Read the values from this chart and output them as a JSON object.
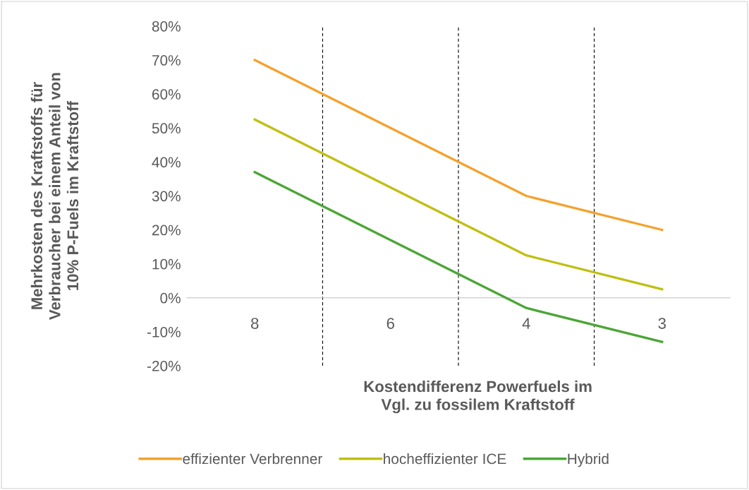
{
  "chart_data": {
    "type": "line",
    "xlabel": "Kostendifferenz Powerfuels im\nVgl. zu fossilem Kraftstoff",
    "ylabel": "Mehrkosten des Kraftstoffs für\nVerbraucher bei einem Anteil von\n10% P-Fuels im Kraftstoff",
    "categories": [
      "8",
      "6",
      "4",
      "3"
    ],
    "series": [
      {
        "name": "effizienter Verbrenner",
        "color": "#f4a22d",
        "values": [
          70,
          50,
          30,
          20
        ]
      },
      {
        "name": "hocheffizienter ICE",
        "color": "#bfbf12",
        "values": [
          52.5,
          32.5,
          12.5,
          2.5
        ]
      },
      {
        "name": "Hybrid",
        "color": "#4aa635",
        "values": [
          37,
          17,
          -3,
          -13
        ]
      }
    ],
    "ylim": [
      -20,
      80
    ],
    "yticks": [
      {
        "value": -20,
        "label": "-20%"
      },
      {
        "value": -10,
        "label": "-10%"
      },
      {
        "value": 0,
        "label": "0%"
      },
      {
        "value": 10,
        "label": "10%"
      },
      {
        "value": 20,
        "label": "20%"
      },
      {
        "value": 30,
        "label": "30%"
      },
      {
        "value": 40,
        "label": "40%"
      },
      {
        "value": 50,
        "label": "50%"
      },
      {
        "value": 60,
        "label": "60%"
      },
      {
        "value": 70,
        "label": "70%"
      },
      {
        "value": 80,
        "label": "80%"
      }
    ],
    "grid": "x",
    "legend": "bottom",
    "marker": "none",
    "line_style": "solid"
  }
}
